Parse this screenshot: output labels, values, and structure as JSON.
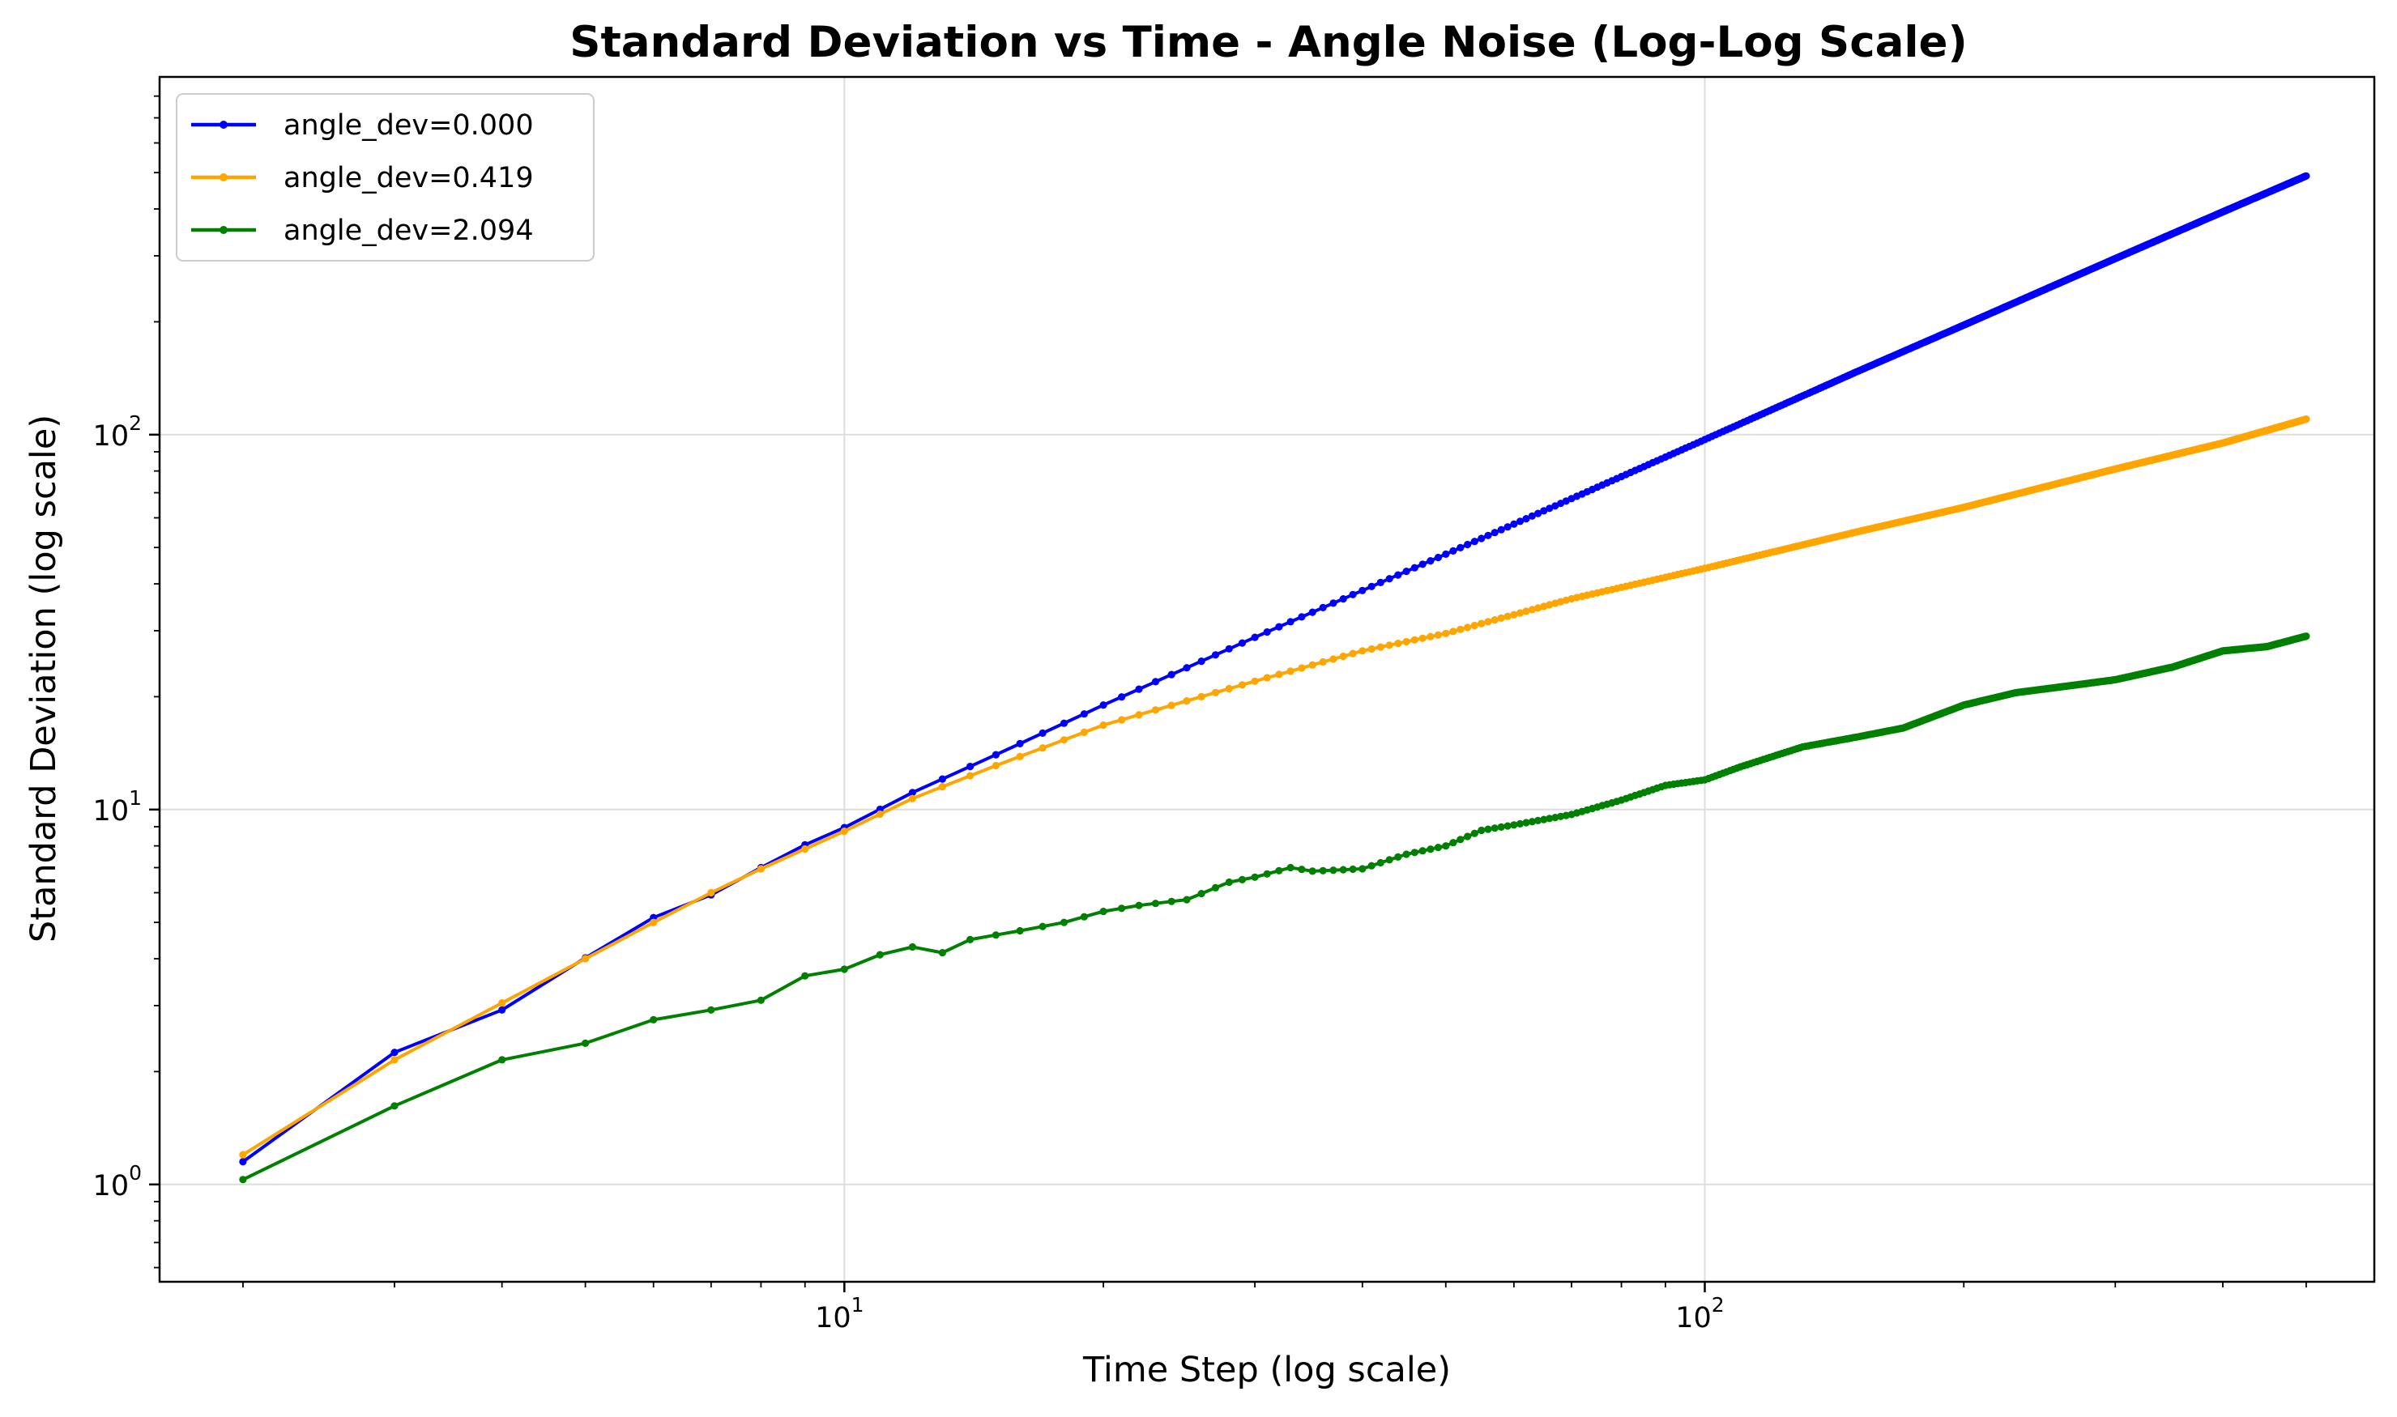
{
  "chart_data": {
    "type": "line",
    "title": "Standard Deviation vs Time - Angle Noise (Log-Log Scale)",
    "xlabel": "Time Step (log scale)",
    "ylabel": "Standard Deviation (log scale)",
    "xscale": "log",
    "yscale": "log",
    "xlim": [
      1.6,
      600
    ],
    "ylim": [
      0.55,
      900
    ],
    "x_ticks": [
      {
        "value": 10,
        "base": "10",
        "exp": "1"
      },
      {
        "value": 100,
        "base": "10",
        "exp": "2"
      }
    ],
    "y_ticks": [
      {
        "value": 1,
        "base": "10",
        "exp": "0"
      },
      {
        "value": 10,
        "base": "10",
        "exp": "1"
      },
      {
        "value": 100,
        "base": "10",
        "exp": "2"
      }
    ],
    "grid": true,
    "legend": "top-left",
    "x_range": [
      2,
      500
    ],
    "series": [
      {
        "name": "angle_dev=0.000",
        "color": "#0000ff",
        "points": [
          [
            2,
            1.15
          ],
          [
            3,
            2.25
          ],
          [
            4,
            2.92
          ],
          [
            5,
            4.02
          ],
          [
            6,
            5.15
          ],
          [
            7,
            5.92
          ],
          [
            8,
            7.0
          ],
          [
            9,
            8.05
          ],
          [
            10,
            8.95
          ],
          [
            12,
            11.1
          ],
          [
            15,
            14.0
          ],
          [
            20,
            19.0
          ],
          [
            30,
            28.8
          ],
          [
            50,
            48.0
          ],
          [
            70,
            67.5
          ],
          [
            100,
            97.0
          ],
          [
            150,
            147
          ],
          [
            200,
            196
          ],
          [
            300,
            295
          ],
          [
            400,
            393
          ],
          [
            500,
            490
          ]
        ]
      },
      {
        "name": "angle_dev=0.419",
        "color": "#ffa500",
        "points": [
          [
            2,
            1.2
          ],
          [
            3,
            2.15
          ],
          [
            4,
            3.05
          ],
          [
            5,
            4.0
          ],
          [
            6,
            5.0
          ],
          [
            7,
            6.0
          ],
          [
            8,
            6.95
          ],
          [
            9,
            7.85
          ],
          [
            10,
            8.75
          ],
          [
            12,
            10.7
          ],
          [
            15,
            13.1
          ],
          [
            20,
            16.8
          ],
          [
            30,
            22.0
          ],
          [
            40,
            26.5
          ],
          [
            50,
            29.5
          ],
          [
            70,
            36.5
          ],
          [
            100,
            44.0
          ],
          [
            150,
            55.0
          ],
          [
            200,
            64.0
          ],
          [
            300,
            81.0
          ],
          [
            400,
            95.0
          ],
          [
            500,
            110.0
          ]
        ]
      },
      {
        "name": "angle_dev=2.094",
        "color": "#008000",
        "points": [
          [
            2,
            1.03
          ],
          [
            3,
            1.62
          ],
          [
            4,
            2.15
          ],
          [
            5,
            2.38
          ],
          [
            6,
            2.75
          ],
          [
            7,
            2.92
          ],
          [
            8,
            3.1
          ],
          [
            9,
            3.6
          ],
          [
            10,
            3.75
          ],
          [
            11,
            4.1
          ],
          [
            12,
            4.3
          ],
          [
            13,
            4.15
          ],
          [
            14,
            4.5
          ],
          [
            16,
            4.75
          ],
          [
            18,
            5.0
          ],
          [
            20,
            5.35
          ],
          [
            22,
            5.55
          ],
          [
            25,
            5.75
          ],
          [
            28,
            6.4
          ],
          [
            30,
            6.6
          ],
          [
            33,
            7.0
          ],
          [
            35,
            6.85
          ],
          [
            40,
            6.95
          ],
          [
            45,
            7.6
          ],
          [
            50,
            8.0
          ],
          [
            55,
            8.8
          ],
          [
            60,
            9.1
          ],
          [
            70,
            9.7
          ],
          [
            80,
            10.6
          ],
          [
            90,
            11.6
          ],
          [
            100,
            12.0
          ],
          [
            110,
            13.0
          ],
          [
            130,
            14.7
          ],
          [
            150,
            15.6
          ],
          [
            170,
            16.5
          ],
          [
            200,
            19.0
          ],
          [
            230,
            20.5
          ],
          [
            270,
            21.5
          ],
          [
            300,
            22.2
          ],
          [
            350,
            24.0
          ],
          [
            400,
            26.5
          ],
          [
            450,
            27.2
          ],
          [
            500,
            29.0
          ]
        ]
      }
    ]
  }
}
